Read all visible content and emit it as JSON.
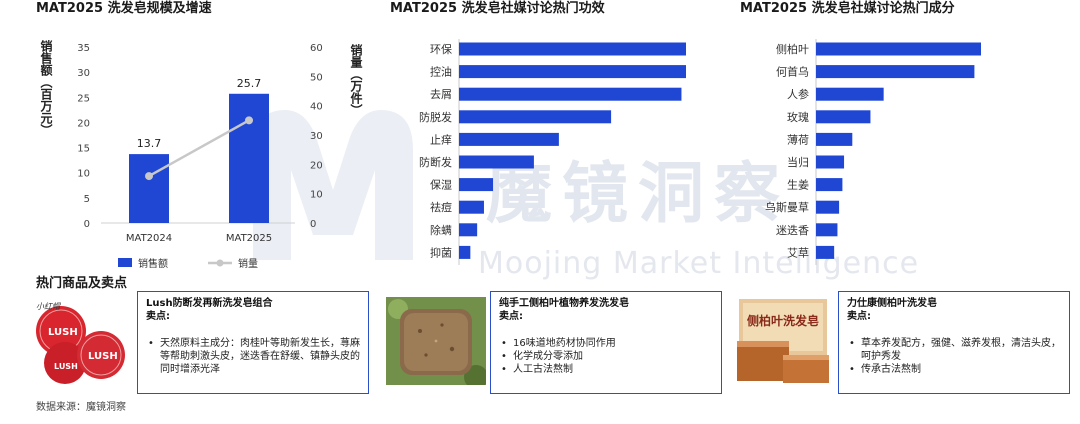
{
  "watermark": {
    "text": "魔镜洞察",
    "sub": "Moojing Market Intelligence"
  },
  "colors": {
    "bar": "#1f47d4",
    "line": "#c8c8c8",
    "box_border": "#2a4fc9",
    "watermark": "#e2e6ee"
  },
  "chart_data": [
    {
      "type": "bar",
      "title": "MAT2025 洗发皂规模及增速",
      "categories": [
        "MAT2024",
        "MAT2025"
      ],
      "series": [
        {
          "name": "销售额",
          "type": "bar",
          "axis": "left",
          "values": [
            13.7,
            25.7
          ]
        },
        {
          "name": "销量",
          "type": "line",
          "axis": "right",
          "values": [
            16,
            35
          ]
        }
      ],
      "ylabel": "销售额（百万元）",
      "ylabel_right": "销量（万件）",
      "ylim": [
        0,
        35
      ],
      "yticks": [
        0,
        5,
        10,
        15,
        20,
        25,
        30,
        35
      ],
      "ylim_right": [
        0,
        60
      ],
      "yticks_right": [
        0,
        10,
        20,
        30,
        40,
        50,
        60
      ],
      "data_labels": [
        "13.7",
        "25.7"
      ],
      "legend_position": "bottom",
      "grid": false
    },
    {
      "type": "bar",
      "orientation": "horizontal",
      "title": "MAT2025 洗发皂社媒讨论热门功效",
      "categories": [
        "环保",
        "控油",
        "去屑",
        "防脱发",
        "止痒",
        "防断发",
        "保湿",
        "祛痘",
        "除螨",
        "抑菌"
      ],
      "values": [
        100,
        100,
        98,
        67,
        44,
        33,
        15,
        11,
        8,
        5
      ],
      "grid": false
    },
    {
      "type": "bar",
      "orientation": "horizontal",
      "title": "MAT2025 洗发皂社媒讨论热门成分",
      "categories": [
        "侧柏叶",
        "何首乌",
        "人参",
        "玫瑰",
        "薄荷",
        "当归",
        "生姜",
        "乌斯曼草",
        "迷迭香",
        "艾草"
      ],
      "values": [
        100,
        96,
        41,
        33,
        22,
        17,
        16,
        14,
        13,
        11
      ],
      "grid": false
    }
  ],
  "products": {
    "title": "热门商品及卖点",
    "items": [
      {
        "name": "Lush防断发再新洗发皂组合",
        "selling_label": "卖点:",
        "points": [
          "天然原料主成分：肉桂叶等助新发生长，荨麻等帮助刺激头皮，迷迭香在舒缓、镇静头皮的同时增添光泽"
        ],
        "image_text": [
          "小红帽",
          "LUSH",
          "LUSH",
          "LUSH"
        ]
      },
      {
        "name": "纯手工侧柏叶植物养发洗发皂",
        "selling_label": "卖点:",
        "points": [
          "16味道地药材协同作用",
          "化学成分零添加",
          "人工古法熬制"
        ]
      },
      {
        "name": "力仕康侧柏叶洗发皂",
        "selling_label": "卖点:",
        "points": [
          "草本养发配方，强健、滋养发根，清洁头皮，呵护秀发",
          "传承古法熬制"
        ],
        "image_text": "侧柏叶洗发皂"
      }
    ]
  },
  "source": "数据来源：魔镜洞察"
}
